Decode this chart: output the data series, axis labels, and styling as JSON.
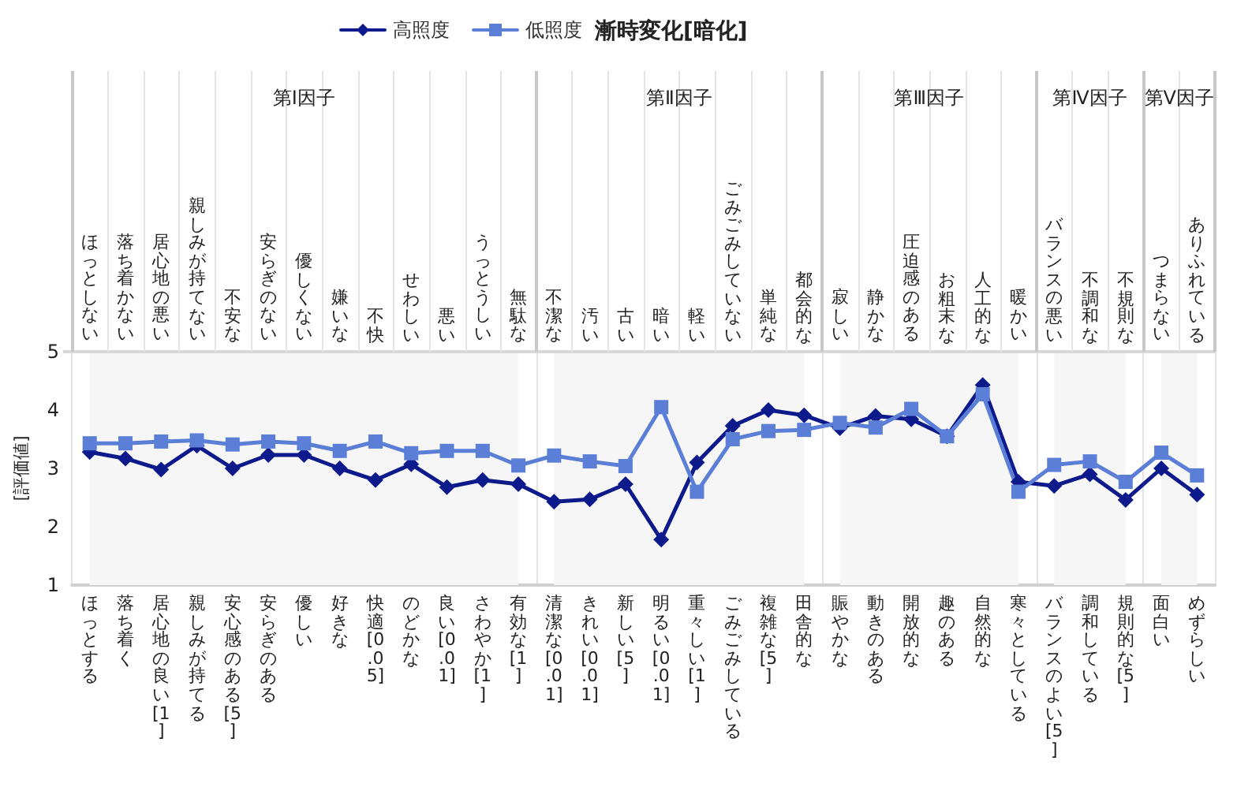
{
  "chart_data": {
    "type": "line",
    "title": "漸時変化[暗化]",
    "ylabel": "[評価値]",
    "categories": [
      "ほっとする",
      "落ち着く",
      "居心地の良い[1]",
      "親しみが持てる",
      "安心感のある[5]",
      "安らぎのある",
      "優しい",
      "好きな",
      "快適[0.05]",
      "のどかな",
      "良い[0.01]",
      "さわやか[1]",
      "有効な[1]",
      "清潔な[0.01]",
      "きれい[0.01]",
      "新しい[5]",
      "明るい[0.01]",
      "重々しい[1]",
      "ごみごみしている",
      "複雑な[5]",
      "田舎的な",
      "賑やかな",
      "動きのある",
      "開放的な",
      "趣のある",
      "自然的な",
      "寒々としている",
      "バランスのよい[5]",
      "調和している",
      "規則的な[5]",
      "面白い",
      "めずらしい"
    ],
    "series": [
      {
        "name": "高照度",
        "color": "#0d1a8c",
        "marker": "diamond",
        "values": [
          3.28,
          3.17,
          2.98,
          3.39,
          3.0,
          3.23,
          3.23,
          3.0,
          2.8,
          3.07,
          2.68,
          2.8,
          2.73,
          2.43,
          2.47,
          2.73,
          1.78,
          3.1,
          3.73,
          4.0,
          3.91,
          3.69,
          3.9,
          3.84,
          3.55,
          4.43,
          2.77,
          2.7,
          2.9,
          2.46,
          3.0,
          2.55
        ]
      },
      {
        "name": "低照度",
        "color": "#5b7fd6",
        "marker": "square",
        "values": [
          3.43,
          3.43,
          3.46,
          3.48,
          3.41,
          3.46,
          3.43,
          3.3,
          3.46,
          3.26,
          3.3,
          3.3,
          3.05,
          3.22,
          3.12,
          3.04,
          4.05,
          2.6,
          3.5,
          3.64,
          3.66,
          3.78,
          3.7,
          4.02,
          3.55,
          4.27,
          2.6,
          3.06,
          3.12,
          2.77,
          3.27,
          2.88
        ]
      }
    ],
    "annotations": [
      "ほっとしない",
      "落ち着かない",
      "居心地の悪い",
      "親しみが持てない",
      "不安な",
      "安らぎのない",
      "優しくない",
      "嫌いな",
      "不快",
      "せわしい",
      "悪い",
      "うっとうしい",
      "無駄な",
      "不潔な",
      "汚い",
      "古い",
      "暗い",
      "軽い",
      "ごみごみしていない",
      "単純な",
      "都会的な",
      "寂しい",
      "静かな",
      "圧迫感のある",
      "お粗末な",
      "人工的な",
      "暖かい",
      "バランスの悪い",
      "不調和な",
      "不規則な",
      "つまらない",
      "ありふれている"
    ],
    "bands": [
      {
        "axis": "x",
        "from": "ほっとする",
        "to": "有効な[1]",
        "label": "第Ⅰ因子",
        "color": "#f6f6f6"
      },
      {
        "axis": "x",
        "from": "清潔な[0.01]",
        "to": "田舎的な",
        "label": "第Ⅱ因子",
        "color": "#f6f6f6"
      },
      {
        "axis": "x",
        "from": "賑やかな",
        "to": "寒々としている",
        "label": "第Ⅲ因子",
        "color": "#f6f6f6"
      },
      {
        "axis": "x",
        "from": "バランスのよい[5]",
        "to": "規則的な[5]",
        "label": "第Ⅳ因子",
        "color": "#f6f6f6"
      },
      {
        "axis": "x",
        "from": "面白い",
        "to": "めずらしい",
        "label": "第Ⅴ因子",
        "color": "#f6f6f6"
      }
    ],
    "ylim": [
      1,
      5
    ],
    "yticks": [
      1,
      2,
      3,
      4,
      5
    ],
    "grid": "x",
    "legend": "top",
    "line_style": "solid"
  }
}
